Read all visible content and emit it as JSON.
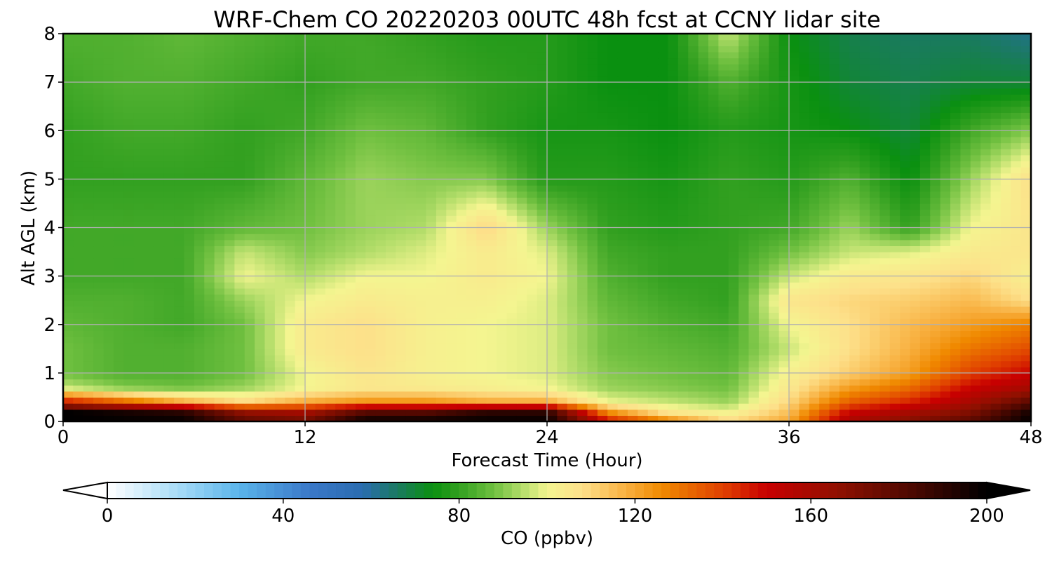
{
  "chart_data": {
    "type": "heatmap",
    "title": "WRF-Chem CO  20220203 00UTC 48h fcst at CCNY lidar site",
    "xlabel": "Forecast Time (Hour)",
    "ylabel": "Alt AGL (km)",
    "xlim": [
      0,
      48
    ],
    "ylim": [
      0,
      8
    ],
    "xticks": [
      0,
      12,
      24,
      36,
      48
    ],
    "yticks": [
      0,
      1,
      2,
      3,
      4,
      5,
      6,
      7,
      8
    ],
    "grid": true,
    "colorbar": {
      "label": "CO  (ppbv)",
      "range": [
        0,
        200
      ],
      "ticks": [
        0,
        40,
        80,
        120,
        160,
        200
      ],
      "extend": "both",
      "orientation": "horizontal",
      "stops": [
        {
          "value": 0,
          "color": "#ffffff"
        },
        {
          "value": 16,
          "color": "#a8dcf8"
        },
        {
          "value": 30,
          "color": "#5ab4ea"
        },
        {
          "value": 46,
          "color": "#3a78c8"
        },
        {
          "value": 58,
          "color": "#2a6cb0"
        },
        {
          "value": 66,
          "color": "#1a7a60"
        },
        {
          "value": 74,
          "color": "#0a9010"
        },
        {
          "value": 80,
          "color": "#32a020"
        },
        {
          "value": 88,
          "color": "#70c040"
        },
        {
          "value": 94,
          "color": "#b0dc68"
        },
        {
          "value": 100,
          "color": "#f4f590"
        },
        {
          "value": 108,
          "color": "#fde08a"
        },
        {
          "value": 118,
          "color": "#f8b040"
        },
        {
          "value": 126,
          "color": "#f08a00"
        },
        {
          "value": 140,
          "color": "#e04000"
        },
        {
          "value": 150,
          "color": "#c80000"
        },
        {
          "value": 166,
          "color": "#901000"
        },
        {
          "value": 182,
          "color": "#500800"
        },
        {
          "value": 200,
          "color": "#000000"
        }
      ]
    },
    "x_hours": [
      0,
      3,
      6,
      9,
      12,
      15,
      18,
      21,
      24,
      27,
      30,
      33,
      36,
      39,
      42,
      45,
      48
    ],
    "y_km": [
      0,
      0.2,
      0.4,
      0.7,
      1.0,
      1.5,
      2.0,
      2.5,
      3.0,
      3.5,
      4.0,
      5.0,
      6.0,
      7.0,
      8.0
    ],
    "values_ppbv": [
      [
        200,
        200,
        200,
        180,
        175,
        200,
        200,
        200,
        200,
        150,
        130,
        110,
        120,
        160,
        170,
        180,
        200
      ],
      [
        200,
        195,
        190,
        165,
        160,
        180,
        180,
        190,
        190,
        125,
        105,
        100,
        115,
        150,
        160,
        170,
        195
      ],
      [
        150,
        135,
        120,
        110,
        120,
        125,
        125,
        120,
        120,
        100,
        96,
        92,
        110,
        135,
        145,
        160,
        180
      ],
      [
        96,
        90,
        88,
        92,
        100,
        105,
        104,
        102,
        100,
        92,
        90,
        88,
        105,
        122,
        132,
        150,
        160
      ],
      [
        88,
        84,
        84,
        88,
        100,
        106,
        102,
        100,
        98,
        90,
        88,
        86,
        102,
        112,
        122,
        140,
        150
      ],
      [
        88,
        84,
        84,
        88,
        104,
        108,
        102,
        100,
        98,
        88,
        86,
        84,
        96,
        108,
        118,
        130,
        138
      ],
      [
        86,
        84,
        82,
        88,
        104,
        108,
        102,
        100,
        98,
        88,
        84,
        82,
        100,
        108,
        116,
        122,
        128
      ],
      [
        84,
        84,
        82,
        92,
        100,
        104,
        102,
        102,
        98,
        86,
        82,
        80,
        106,
        110,
        112,
        116,
        108
      ],
      [
        82,
        82,
        82,
        100,
        94,
        100,
        100,
        104,
        100,
        84,
        80,
        80,
        96,
        104,
        106,
        110,
        102
      ],
      [
        82,
        82,
        82,
        96,
        90,
        94,
        98,
        104,
        98,
        82,
        80,
        80,
        88,
        96,
        98,
        104,
        106
      ],
      [
        82,
        82,
        82,
        86,
        88,
        92,
        94,
        110,
        92,
        80,
        78,
        80,
        82,
        92,
        80,
        100,
        106
      ],
      [
        80,
        80,
        80,
        80,
        86,
        92,
        90,
        90,
        78,
        78,
        76,
        80,
        78,
        84,
        74,
        92,
        108
      ],
      [
        80,
        82,
        82,
        80,
        82,
        88,
        86,
        80,
        76,
        76,
        74,
        78,
        76,
        74,
        70,
        82,
        90
      ],
      [
        82,
        84,
        84,
        82,
        80,
        82,
        82,
        80,
        78,
        74,
        74,
        84,
        76,
        70,
        68,
        70,
        70
      ],
      [
        84,
        84,
        86,
        84,
        82,
        82,
        80,
        78,
        78,
        74,
        74,
        96,
        74,
        68,
        66,
        66,
        62
      ]
    ]
  }
}
